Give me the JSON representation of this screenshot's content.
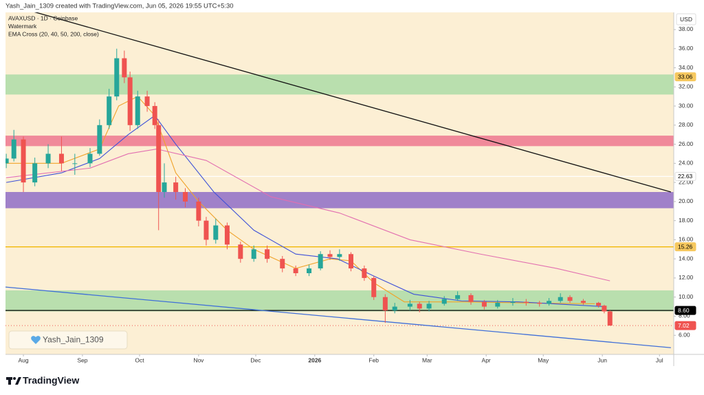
{
  "header": {
    "credit": "Yash_Jain_1309 created with TradingView.com, Jun 05, 2026 19:55 UTC+5:30"
  },
  "chart_data": {
    "type": "candlestick",
    "title": "AVAXUSD · 1D · Coinbase",
    "subtitle": "Watermark",
    "indicator": "EMA Cross (20, 40, 50, 200, close)",
    "y_axis_label": "USD",
    "x": [
      -9,
      -5,
      0,
      6,
      13,
      20,
      27,
      35,
      40,
      45,
      49,
      53,
      56,
      60,
      65,
      69,
      71,
      74,
      80,
      85,
      92,
      96,
      101,
      107,
      114,
      121,
      128,
      136,
      143,
      150,
      156,
      161,
      166,
      172,
      179,
      184,
      190,
      195,
      203,
      208,
      213,
      221,
      228,
      235,
      242,
      249,
      257,
      264,
      271,
      276,
      282,
      287,
      294,
      302,
      305,
      308
    ],
    "open": [
      24.0,
      24.5,
      26.5,
      22.0,
      24.0,
      25.0,
      24.0,
      24.0,
      25.0,
      28.0,
      31.0,
      35.0,
      33.0,
      28.0,
      31.0,
      30.0,
      28.0,
      21.0,
      22.0,
      21.0,
      20.0,
      18.0,
      16.0,
      17.5,
      15.5,
      14.0,
      15.0,
      14.0,
      13.0,
      12.5,
      13.0,
      14.5,
      14.2,
      14.5,
      13.0,
      12.0,
      10.0,
      8.6,
      9.0,
      9.3,
      8.8,
      9.3,
      9.8,
      10.2,
      9.5,
      9.0,
      9.4,
      9.5,
      9.4,
      9.3,
      9.6,
      10.0,
      9.6,
      9.4,
      9.1,
      8.5
    ],
    "high": [
      25.0,
      27.5,
      26.8,
      24.6,
      26.0,
      26.8,
      25.0,
      25.6,
      28.6,
      31.8,
      36.0,
      35.8,
      33.6,
      31.6,
      31.6,
      30.4,
      28.6,
      24.0,
      22.6,
      21.4,
      20.4,
      18.4,
      18.2,
      17.8,
      15.8,
      15.4,
      15.4,
      14.3,
      13.3,
      13.4,
      14.8,
      14.9,
      15.0,
      14.7,
      13.3,
      12.2,
      10.3,
      9.4,
      9.7,
      9.5,
      9.6,
      10.1,
      10.6,
      10.4,
      9.7,
      9.7,
      9.9,
      9.8,
      9.6,
      9.9,
      10.4,
      10.2,
      9.8,
      9.5,
      9.2,
      8.6
    ],
    "low": [
      23.5,
      24.2,
      21.0,
      21.6,
      23.5,
      23.2,
      22.8,
      23.6,
      24.8,
      27.6,
      30.6,
      32.4,
      27.4,
      27.6,
      29.4,
      27.6,
      17.0,
      20.4,
      20.2,
      19.4,
      17.4,
      15.4,
      15.6,
      15.0,
      13.6,
      13.7,
      13.6,
      12.6,
      12.2,
      12.2,
      12.8,
      13.9,
      13.8,
      12.7,
      11.7,
      9.7,
      7.3,
      8.3,
      8.6,
      8.4,
      8.5,
      9.1,
      9.6,
      9.2,
      8.7,
      8.8,
      9.1,
      9.1,
      9.0,
      9.1,
      9.4,
      9.4,
      9.2,
      8.9,
      8.3,
      7.0
    ],
    "close": [
      24.5,
      26.5,
      22.0,
      24.0,
      25.0,
      24.0,
      24.0,
      25.0,
      28.0,
      31.0,
      35.0,
      33.0,
      28.0,
      31.0,
      30.0,
      28.0,
      21.0,
      22.0,
      21.0,
      20.0,
      18.0,
      16.0,
      17.5,
      15.5,
      14.0,
      15.0,
      14.0,
      13.0,
      12.5,
      13.0,
      14.5,
      14.2,
      14.5,
      13.0,
      12.0,
      10.0,
      8.6,
      9.0,
      9.3,
      8.8,
      9.3,
      9.8,
      10.2,
      9.5,
      9.0,
      9.4,
      9.5,
      9.4,
      9.3,
      9.6,
      10.0,
      9.6,
      9.4,
      9.1,
      8.5,
      7.02
    ],
    "up_color": "#26a69a",
    "down_color": "#ef5350",
    "xlim": [
      -9.4,
      341.5
    ],
    "ylim": [
      4,
      39.8
    ],
    "xticks": [
      {
        "value": 0,
        "label": "Aug"
      },
      {
        "value": 31,
        "label": "Sep"
      },
      {
        "value": 61,
        "label": "Oct"
      },
      {
        "value": 92,
        "label": "Nov"
      },
      {
        "value": 122,
        "label": "Dec"
      },
      {
        "value": 153,
        "label": "2026"
      },
      {
        "value": 184,
        "label": "Feb"
      },
      {
        "value": 212,
        "label": "Mar"
      },
      {
        "value": 243,
        "label": "Apr"
      },
      {
        "value": 273,
        "label": "May"
      },
      {
        "value": 304,
        "label": "Jun"
      },
      {
        "value": 334,
        "label": "Jul"
      }
    ],
    "yticks": [
      {
        "value": 6,
        "label": "6.00"
      },
      {
        "value": 8,
        "label": "8.00"
      },
      {
        "value": 10,
        "label": "10.00"
      },
      {
        "value": 12,
        "label": "12.00"
      },
      {
        "value": 14,
        "label": "14.00"
      },
      {
        "value": 16,
        "label": "16.00"
      },
      {
        "value": 18,
        "label": "18.00"
      },
      {
        "value": 20,
        "label": "20.00"
      },
      {
        "value": 22,
        "label": "22.00"
      },
      {
        "value": 24,
        "label": "24.00"
      },
      {
        "value": 26,
        "label": "26.00"
      },
      {
        "value": 28,
        "label": "28.00"
      },
      {
        "value": 30,
        "label": "30.00"
      },
      {
        "value": 32,
        "label": "32.00"
      },
      {
        "value": 34,
        "label": "34.00"
      },
      {
        "value": 36,
        "label": "36.00"
      },
      {
        "value": 38,
        "label": "38.00"
      }
    ],
    "zones": [
      {
        "range": [
          31.2,
          33.3
        ],
        "color": "#b9dfae"
      },
      {
        "range": [
          25.8,
          26.9
        ],
        "color": "#f0899a"
      },
      {
        "range": [
          19.3,
          21.0
        ],
        "color": "#a081c9"
      },
      {
        "range": [
          8.5,
          10.7
        ],
        "color": "#b9dfae"
      }
    ],
    "lines": [
      {
        "color": "#f0a32a",
        "x": [
          -9,
          20,
          40,
          50,
          60,
          69,
          80,
          92,
          107,
          121,
          143,
          161,
          172,
          184,
          200,
          230,
          260,
          300
        ],
        "values": [
          24,
          24,
          25.5,
          30,
          31,
          29,
          23,
          20,
          17,
          15,
          13,
          14,
          13.8,
          11.5,
          9.5,
          9.5,
          9.4,
          9.3
        ]
      },
      {
        "color": "#3f51d8",
        "x": [
          -9,
          20,
          40,
          55,
          69,
          80,
          100,
          121,
          143,
          165,
          184,
          205,
          230,
          260,
          305
        ],
        "values": [
          22,
          23,
          24.5,
          27,
          29,
          26,
          21,
          17,
          14.5,
          14,
          12.2,
          10.3,
          9.6,
          9.5,
          9.0
        ]
      },
      {
        "color": "#e26fb0",
        "x": [
          -9,
          35,
          55,
          70,
          96,
          130,
          166,
          203,
          240,
          280,
          308
        ],
        "values": [
          22.5,
          23.5,
          25,
          25.5,
          24.3,
          20.5,
          18.8,
          16,
          14.5,
          13,
          11.7
        ]
      }
    ],
    "trendlines": [
      {
        "color": "#111111",
        "x": [
          -9.4,
          340
        ],
        "values": [
          40.7,
          21.0
        ]
      },
      {
        "color": "#3f6fd8",
        "x": [
          -9.4,
          340
        ],
        "values": [
          11.05,
          4.7
        ]
      }
    ],
    "levels": [
      {
        "value": 22.63,
        "color": "#ffffff",
        "style": "solid"
      },
      {
        "value": 15.26,
        "color": "#f2b705",
        "style": "solid"
      },
      {
        "value": 8.6,
        "color": "#000000",
        "style": "solid"
      },
      {
        "value": 7.02,
        "color": "#ef5350",
        "style": "dotted"
      }
    ],
    "price_labels": [
      {
        "value": 33.06,
        "label": "33.06",
        "color": "#f6c85f",
        "text_color": "#000000"
      },
      {
        "value": 22.63,
        "label": "22.63",
        "color": "#ffffff",
        "text_color": "#000000"
      },
      {
        "value": 15.26,
        "label": "15.26",
        "color": "#f6c85f",
        "text_color": "#000000"
      },
      {
        "value": 8.6,
        "label": "8.60",
        "color": "#000000",
        "text_color": "#ffffff"
      },
      {
        "value": 7.02,
        "label": "7.02",
        "color": "#ef5350",
        "text_color": "#ffffff"
      }
    ],
    "background": "#fcefd4"
  },
  "watermark": {
    "text": "Yash_Jain_1309"
  },
  "footer": {
    "brand": "TradingView"
  }
}
